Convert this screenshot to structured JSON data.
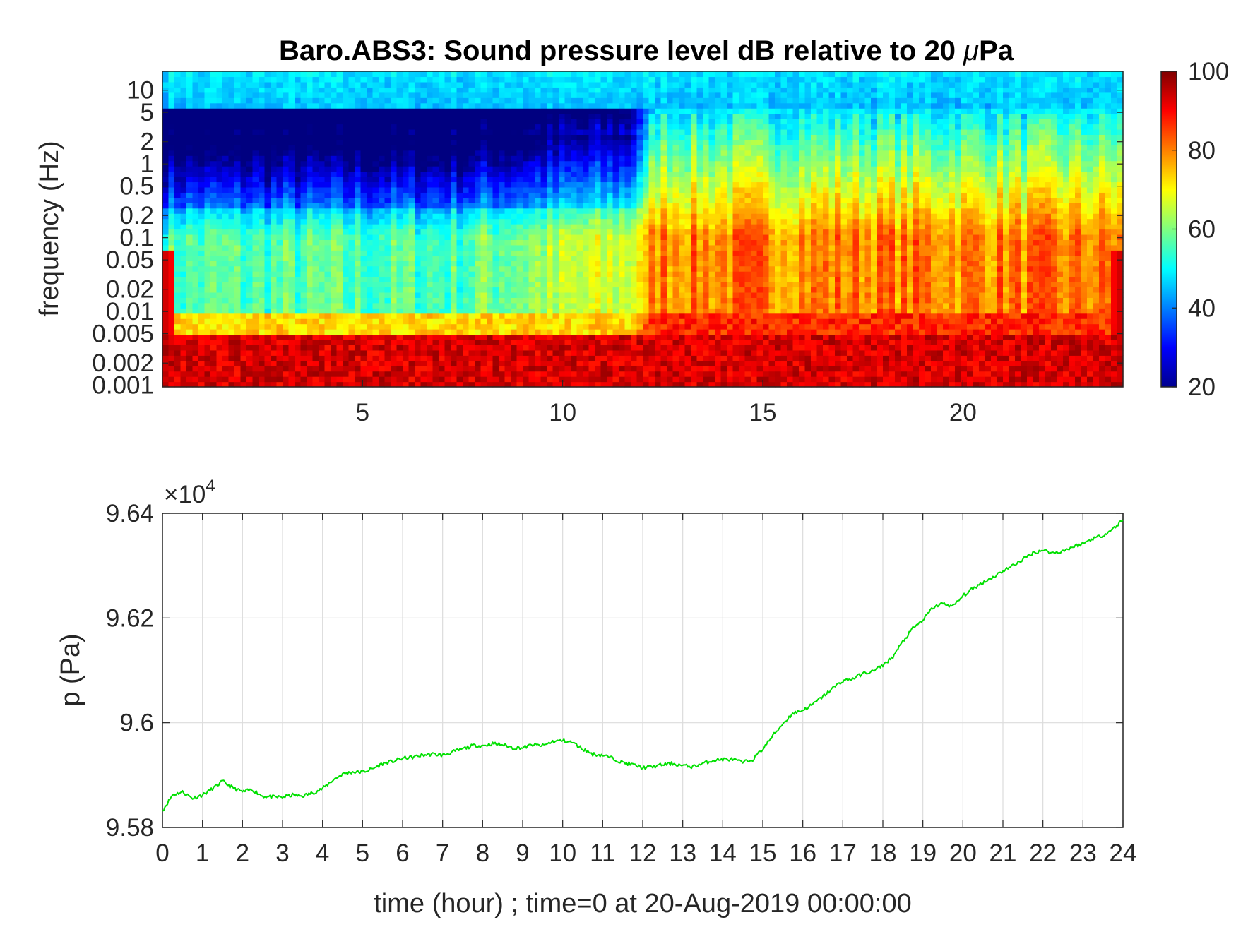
{
  "chart_data": [
    {
      "type": "heatmap",
      "title": "Baro.ABS3: Sound pressure level dB relative to 20 μPa",
      "title_main": "Baro.ABS3: Sound pressure level dB relative to 20 ",
      "title_mu": "μ",
      "title_tail": "Pa",
      "ylabel": "frequency (Hz)",
      "yscale": "log",
      "ylim": [
        0.00095,
        18
      ],
      "xlim": [
        0,
        24
      ],
      "yticks": [
        0.001,
        0.002,
        0.005,
        0.01,
        0.02,
        0.05,
        0.1,
        0.2,
        0.5,
        1,
        2,
        5,
        10
      ],
      "ytick_labels": [
        "0.001",
        "0.002",
        "0.005",
        "0.01",
        "0.02",
        "0.05",
        "0.1",
        "0.2",
        "0.5",
        "1",
        "2",
        "5",
        "10"
      ],
      "xticks": [
        5,
        10,
        15,
        20
      ],
      "xtick_labels": [
        "5",
        "10",
        "15",
        "20"
      ],
      "colorbar": {
        "colormap": "jet",
        "clim": [
          20,
          100
        ],
        "ticks": [
          20,
          40,
          60,
          80,
          100
        ],
        "tick_labels": [
          "20",
          "40",
          "60",
          "80",
          "100"
        ]
      },
      "level_profile_db": [
        {
          "hour_range": [
            0,
            12
          ],
          "f_above_0.01": 50,
          "f_0.005_0.01": 65,
          "f_below_0.005": 90
        },
        {
          "hour_range": [
            12,
            24
          ],
          "f_above_0.01": 78,
          "f_0.005_0.01": 85,
          "f_below_0.005": 92
        }
      ]
    },
    {
      "type": "line",
      "xlabel": "time (hour) ; time=0 at 20-Aug-2019 00:00:00",
      "ylabel": "p (Pa)",
      "exponent_base": "×10",
      "exponent_power": "4",
      "xlim": [
        0,
        24
      ],
      "ylim": [
        95800,
        96400
      ],
      "xticks": [
        0,
        1,
        2,
        3,
        4,
        5,
        6,
        7,
        8,
        9,
        10,
        11,
        12,
        13,
        14,
        15,
        16,
        17,
        18,
        19,
        20,
        21,
        22,
        23,
        24
      ],
      "xtick_labels": [
        "0",
        "1",
        "2",
        "3",
        "4",
        "5",
        "6",
        "7",
        "8",
        "9",
        "10",
        "11",
        "12",
        "13",
        "14",
        "15",
        "16",
        "17",
        "18",
        "19",
        "20",
        "21",
        "22",
        "23",
        "24"
      ],
      "yticks": [
        95800,
        96000,
        96200,
        96400
      ],
      "ytick_labels": [
        "9.58",
        "9.6",
        "9.62",
        "9.64"
      ],
      "grid": true,
      "series": [
        {
          "color": "#00e000",
          "x": [
            0,
            0.25,
            0.5,
            0.75,
            1,
            1.25,
            1.5,
            1.75,
            2,
            2.25,
            2.5,
            2.75,
            3,
            3.25,
            3.5,
            3.75,
            4,
            4.25,
            4.5,
            4.75,
            5,
            5.25,
            5.5,
            5.75,
            6,
            6.25,
            6.5,
            6.75,
            7,
            7.25,
            7.5,
            7.75,
            8,
            8.25,
            8.5,
            8.75,
            9,
            9.25,
            9.5,
            9.75,
            10,
            10.25,
            10.5,
            10.75,
            11,
            11.25,
            11.5,
            11.75,
            12,
            12.25,
            12.5,
            12.75,
            13,
            13.25,
            13.5,
            13.75,
            14,
            14.25,
            14.5,
            14.75,
            15,
            15.25,
            15.5,
            15.75,
            16,
            16.25,
            16.5,
            16.75,
            17,
            17.25,
            17.5,
            17.75,
            18,
            18.25,
            18.5,
            18.75,
            19,
            19.25,
            19.5,
            19.75,
            20,
            20.25,
            20.5,
            20.75,
            21,
            21.25,
            21.5,
            21.75,
            22,
            22.25,
            22.5,
            22.75,
            23,
            23.25,
            23.5,
            23.75,
            24
          ],
          "y": [
            95832,
            95862,
            95868,
            95856,
            95862,
            95874,
            95888,
            95876,
            95868,
            95872,
            95860,
            95858,
            95858,
            95862,
            95860,
            95866,
            95874,
            95890,
            95902,
            95906,
            95906,
            95912,
            95922,
            95926,
            95932,
            95934,
            95938,
            95940,
            95938,
            95944,
            95950,
            95956,
            95956,
            95960,
            95958,
            95952,
            95952,
            95958,
            95956,
            95964,
            95966,
            95962,
            95950,
            95940,
            95938,
            95932,
            95924,
            95920,
            95914,
            95916,
            95920,
            95922,
            95918,
            95916,
            95922,
            95928,
            95930,
            95930,
            95924,
            95930,
            95950,
            95975,
            95998,
            96018,
            96024,
            96035,
            96050,
            96066,
            96080,
            96084,
            96094,
            96098,
            96110,
            96126,
            96155,
            96180,
            96196,
            96220,
            96228,
            96222,
            96242,
            96256,
            96268,
            96278,
            96290,
            96300,
            96312,
            96324,
            96330,
            96324,
            96328,
            96336,
            96342,
            96352,
            96358,
            96370,
            96388
          ]
        }
      ]
    }
  ]
}
